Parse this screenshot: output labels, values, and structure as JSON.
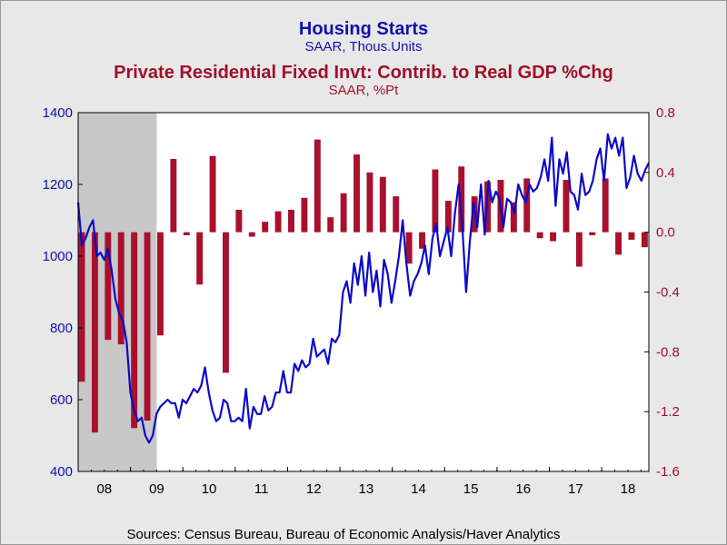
{
  "chart_data": {
    "type": "bar+line",
    "title_primary": "Housing Starts",
    "subtitle_primary": "SAAR, Thous.Units",
    "title_secondary": "Private Residential Fixed Invt: Contrib. to Real GDP %Chg",
    "subtitle_secondary": "SAAR, %Pt",
    "source": "Sources:  Census Bureau, Bureau of Economic Analysis/Haver Analytics",
    "x_labels": [
      "08",
      "09",
      "10",
      "11",
      "12",
      "13",
      "14",
      "15",
      "16",
      "17",
      "18"
    ],
    "x_range": [
      2008.0,
      2018.9
    ],
    "recession": [
      2008.0,
      2009.5
    ],
    "left_axis": {
      "min": 400,
      "max": 1400,
      "ticks": [
        400,
        600,
        800,
        1000,
        1200,
        1400
      ]
    },
    "right_axis": {
      "min": -1.6,
      "max": 0.8,
      "ticks": [
        "-1.6",
        "-1.2",
        "-0.8",
        "-0.4",
        "0.0",
        "0.4",
        "0.8"
      ]
    },
    "colors": {
      "line": "#0a0ac8",
      "bars": "#a8102e",
      "recession": "#c8c8c8",
      "plot_bg": "#ffffff",
      "frame_bg": "#e8e8e8"
    },
    "housing_starts": [
      1150,
      1030,
      1050,
      1080,
      1100,
      1000,
      1010,
      990,
      1020,
      960,
      880,
      840,
      820,
      760,
      620,
      570,
      540,
      550,
      500,
      480,
      500,
      560,
      580,
      590,
      600,
      590,
      590,
      550,
      600,
      590,
      610,
      630,
      620,
      640,
      690,
      620,
      570,
      540,
      550,
      600,
      590,
      540,
      540,
      550,
      540,
      630,
      520,
      580,
      560,
      560,
      610,
      570,
      580,
      620,
      620,
      680,
      620,
      620,
      700,
      680,
      710,
      690,
      700,
      770,
      720,
      730,
      740,
      700,
      770,
      760,
      780,
      900,
      930,
      870,
      980,
      920,
      1000,
      890,
      1010,
      900,
      960,
      860,
      990,
      950,
      870,
      930,
      1000,
      1100,
      980,
      890,
      930,
      950,
      980,
      1030,
      950,
      1050,
      1090,
      1000,
      1040,
      1080,
      1000,
      1120,
      1200,
      1080,
      900,
      1040,
      1150,
      1080,
      1200,
      1060,
      1210,
      1150,
      1180,
      1160,
      1080,
      1160,
      1150,
      1120,
      1200,
      1170,
      1150,
      1200,
      1180,
      1190,
      1220,
      1270,
      1210,
      1330,
      1140,
      1270,
      1230,
      1290,
      1180,
      1170,
      1130,
      1230,
      1170,
      1180,
      1210,
      1270,
      1300,
      1210,
      1340,
      1300,
      1330,
      1280,
      1330,
      1190,
      1220,
      1280,
      1230,
      1210,
      1240,
      1260
    ],
    "gdp_contrib": [
      -1.0,
      -1.34,
      -0.72,
      -0.75,
      -1.31,
      -1.26,
      -0.69,
      0.49,
      -0.02,
      -0.35,
      0.51,
      -0.94,
      0.15,
      -0.03,
      0.07,
      0.14,
      0.15,
      0.23,
      0.62,
      0.1,
      0.26,
      0.52,
      0.4,
      0.37,
      0.24,
      -0.21,
      -0.11,
      0.42,
      0.21,
      0.44,
      0.24,
      0.34,
      0.35,
      0.2,
      0.36,
      -0.04,
      -0.06,
      0.35,
      -0.23,
      -0.02,
      0.36,
      -0.15,
      -0.05,
      -0.1
    ],
    "gdp_x": [
      2008.07,
      2008.32,
      2008.57,
      2008.82,
      2009.07,
      2009.32,
      2009.57,
      2009.82,
      2010.07,
      2010.32,
      2010.57,
      2010.82,
      2011.07,
      2011.32,
      2011.57,
      2011.82,
      2012.07,
      2012.32,
      2012.57,
      2012.82,
      2013.07,
      2013.32,
      2013.57,
      2013.82,
      2014.07,
      2014.32,
      2014.57,
      2014.82,
      2015.07,
      2015.32,
      2015.57,
      2015.82,
      2016.07,
      2016.32,
      2016.57,
      2016.82,
      2017.07,
      2017.32,
      2017.57,
      2017.82,
      2018.07,
      2018.32,
      2018.57,
      2018.82
    ]
  }
}
